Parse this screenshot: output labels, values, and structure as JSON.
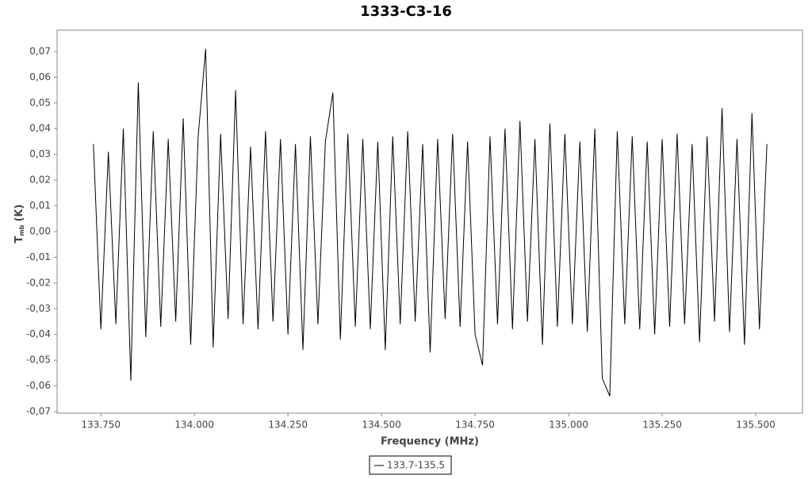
{
  "chart_data": {
    "type": "line",
    "title": "1333-C3-16",
    "x_label": "Frequency (MHz)",
    "y_label": "T",
    "y_label_sub": "mb",
    "y_label_suffix": "(K)",
    "xlim": [
      133.633,
      135.625
    ],
    "ylim": [
      -0.0706,
      0.0783
    ],
    "xticks": [
      {
        "value": 133.75,
        "label": "133.750"
      },
      {
        "value": 134,
        "label": "134.000"
      },
      {
        "value": 134.25,
        "label": "134.250"
      },
      {
        "value": 134.5,
        "label": "134.500"
      },
      {
        "value": 134.75,
        "label": "134.750"
      },
      {
        "value": 135,
        "label": "135.000"
      },
      {
        "value": 135.25,
        "label": "135.250"
      },
      {
        "value": 135.5,
        "label": "135.500"
      }
    ],
    "yticks": [
      {
        "value": -0.07,
        "label": "-0,07"
      },
      {
        "value": -0.06,
        "label": "-0,06"
      },
      {
        "value": -0.05,
        "label": "-0,05"
      },
      {
        "value": -0.04,
        "label": "-0,04"
      },
      {
        "value": -0.03,
        "label": "-0,03"
      },
      {
        "value": -0.02,
        "label": "-0,02"
      },
      {
        "value": -0.01,
        "label": "-0,01"
      },
      {
        "value": 0,
        "label": "0,00"
      },
      {
        "value": 0.01,
        "label": "0,01"
      },
      {
        "value": 0.02,
        "label": "0,02"
      },
      {
        "value": 0.03,
        "label": "0,03"
      },
      {
        "value": 0.04,
        "label": "0,04"
      },
      {
        "value": 0.05,
        "label": "0,05"
      },
      {
        "value": 0.06,
        "label": "0,06"
      },
      {
        "value": 0.07,
        "label": "0,07"
      }
    ],
    "grid": false,
    "legend": "bottom",
    "x": [
      133.73,
      133.75,
      133.77,
      133.79,
      133.81,
      133.83,
      133.85,
      133.87,
      133.89,
      133.91,
      133.93,
      133.95,
      133.97,
      133.99,
      134.01,
      134.03,
      134.05,
      134.07,
      134.09,
      134.11,
      134.13,
      134.15,
      134.17,
      134.19,
      134.21,
      134.23,
      134.25,
      134.27,
      134.29,
      134.31,
      134.33,
      134.35,
      134.37,
      134.39,
      134.41,
      134.43,
      134.45,
      134.47,
      134.49,
      134.51,
      134.53,
      134.55,
      134.57,
      134.59,
      134.61,
      134.63,
      134.65,
      134.67,
      134.69,
      134.71,
      134.73,
      134.75,
      134.77,
      134.79,
      134.81,
      134.83,
      134.85,
      134.87,
      134.89,
      134.91,
      134.93,
      134.95,
      134.97,
      134.99,
      135.01,
      135.03,
      135.05,
      135.07,
      135.09,
      135.11,
      135.13,
      135.15,
      135.17,
      135.19,
      135.21,
      135.23,
      135.25,
      135.27,
      135.29,
      135.31,
      135.33,
      135.35,
      135.37,
      135.39,
      135.41,
      135.43,
      135.45,
      135.47,
      135.49,
      135.51,
      135.53
    ],
    "series": [
      {
        "name": "133.7-135.5",
        "color": "#000000",
        "values": [
          0.034,
          -0.038,
          0.031,
          -0.036,
          0.04,
          -0.058,
          0.058,
          -0.041,
          0.039,
          -0.037,
          0.036,
          -0.035,
          0.044,
          -0.044,
          0.037,
          0.071,
          -0.045,
          0.038,
          -0.034,
          0.055,
          -0.036,
          0.033,
          -0.038,
          0.039,
          -0.035,
          0.036,
          -0.04,
          0.034,
          -0.046,
          0.037,
          -0.036,
          0.035,
          0.054,
          -0.042,
          0.038,
          -0.037,
          0.036,
          -0.038,
          0.035,
          -0.046,
          0.037,
          -0.036,
          0.039,
          -0.035,
          0.034,
          -0.047,
          0.036,
          -0.034,
          0.038,
          -0.037,
          0.035,
          -0.04,
          -0.052,
          0.037,
          -0.036,
          0.04,
          -0.038,
          0.043,
          -0.035,
          0.036,
          -0.044,
          0.042,
          -0.037,
          0.038,
          -0.036,
          0.035,
          -0.039,
          0.04,
          -0.057,
          -0.064,
          0.039,
          -0.036,
          0.037,
          -0.038,
          0.035,
          -0.04,
          0.036,
          -0.037,
          0.038,
          -0.036,
          0.034,
          -0.043,
          0.037,
          -0.035,
          0.048,
          -0.039,
          0.036,
          -0.044,
          0.046,
          -0.038,
          0.034
        ]
      }
    ]
  }
}
